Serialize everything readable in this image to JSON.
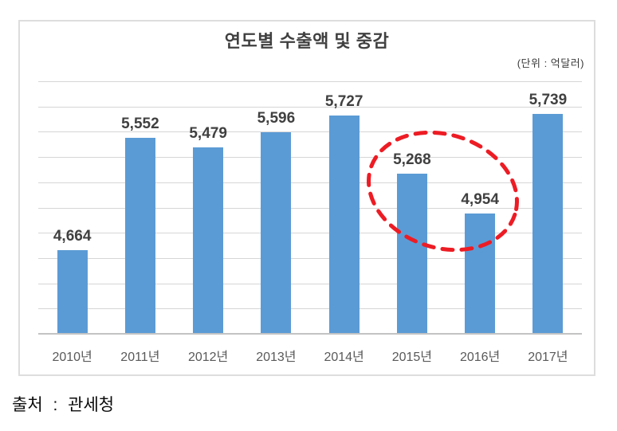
{
  "chart": {
    "title": "연도별 수출액 및 중감",
    "unit_label": "(단위 : 억달러)"
  },
  "source": "출처 : 관세청",
  "colors": {
    "bar": "#5b9bd5",
    "annotation": "#ed1c24",
    "gridline": "#d6d6d6",
    "axis_line": "#c3c3c3",
    "value_label": "#404040",
    "category_label": "#595959",
    "title_text": "#404040",
    "frame_border": "#dddddd"
  },
  "chart_data": {
    "type": "bar",
    "title": "연도별 수출액 및 중감",
    "unit": "(단위 : 억달러)",
    "categories": [
      "2010년",
      "2011년",
      "2012년",
      "2013년",
      "2014년",
      "2015년",
      "2016년",
      "2017년"
    ],
    "values": [
      4664,
      5552,
      5479,
      5596,
      5727,
      5268,
      4954,
      5739
    ],
    "value_labels": [
      "4,664",
      "5,552",
      "5,479",
      "5,596",
      "5,727",
      "5,268",
      "4,954",
      "5,739"
    ],
    "xlabel": "",
    "ylabel": "",
    "ylim": [
      4000,
      6000
    ],
    "gridline_step": 200,
    "grid": true,
    "legend": false,
    "y_tick_labels_shown": false,
    "annotation": {
      "type": "dashed-ellipse",
      "highlight_categories": [
        "2015년",
        "2016년"
      ],
      "highlight_indices": [
        5,
        6
      ],
      "color": "#ed1c24"
    },
    "source": "출처 : 관세청"
  }
}
